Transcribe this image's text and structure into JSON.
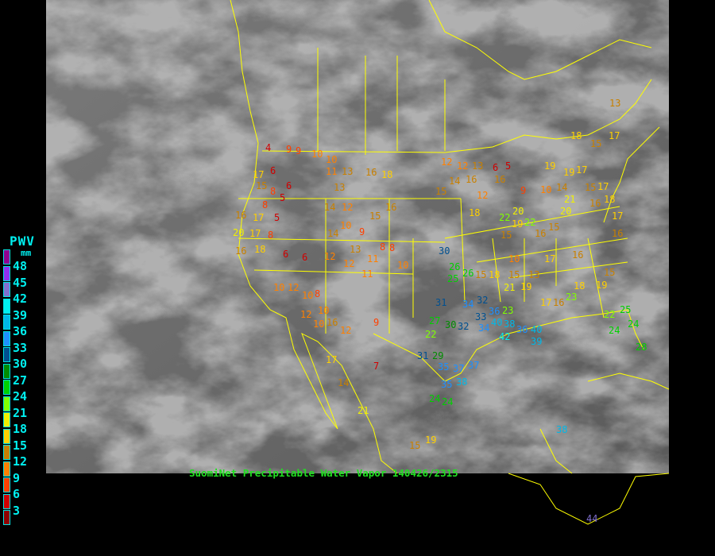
{
  "caption": "SuomiNet Precipitable Water Vapor 140426/2315",
  "legend": {
    "title": "PWV",
    "unit": "mm",
    "ticks": [
      "48",
      "45",
      "42",
      "39",
      "36",
      "33",
      "30",
      "27",
      "24",
      "21",
      "18",
      "15",
      "12",
      "9",
      "6",
      "3"
    ],
    "colors": [
      "#900090",
      "#9030f0",
      "#8070d0",
      "#00f0f0",
      "#00b8e8",
      "#1e90ff",
      "#005090",
      "#008c00",
      "#00d000",
      "#80ff00",
      "#f0f000",
      "#ffd000",
      "#c88000",
      "#ff8000",
      "#ff4000",
      "#d00000",
      "#900000"
    ]
  },
  "map_colors": {
    "borders": "#ffff00",
    "background": "#000000"
  },
  "stations": [
    {
      "v": "4",
      "c": "#d00000"
    },
    {
      "v": "9",
      "c": "#ff4000"
    },
    {
      "v": "9",
      "c": "#ff4000"
    },
    {
      "v": "10",
      "c": "#ff8000"
    },
    {
      "v": "17",
      "c": "#ffd000"
    },
    {
      "v": "6",
      "c": "#d00000"
    },
    {
      "v": "15",
      "c": "#c88000"
    },
    {
      "v": "8",
      "c": "#ff4000"
    },
    {
      "v": "6",
      "c": "#d00000"
    },
    {
      "v": "5",
      "c": "#d00000"
    },
    {
      "v": "16",
      "c": "#c88000"
    },
    {
      "v": "17",
      "c": "#ffd000"
    },
    {
      "v": "5",
      "c": "#d00000"
    },
    {
      "v": "8",
      "c": "#ff4000"
    },
    {
      "v": "20",
      "c": "#f0f000"
    },
    {
      "v": "17",
      "c": "#ffd000"
    },
    {
      "v": "8",
      "c": "#ff4000"
    },
    {
      "v": "16",
      "c": "#c88000"
    },
    {
      "v": "18",
      "c": "#ffd000"
    },
    {
      "v": "6",
      "c": "#d00000"
    },
    {
      "v": "10",
      "c": "#ff8000"
    },
    {
      "v": "11",
      "c": "#ff8000"
    },
    {
      "v": "13",
      "c": "#c88000"
    },
    {
      "v": "16",
      "c": "#c88000"
    },
    {
      "v": "18",
      "c": "#ffd000"
    },
    {
      "v": "13",
      "c": "#c88000"
    },
    {
      "v": "14",
      "c": "#c88000"
    },
    {
      "v": "12",
      "c": "#ff8000"
    },
    {
      "v": "15",
      "c": "#c88000"
    },
    {
      "v": "16",
      "c": "#c88000"
    },
    {
      "v": "10",
      "c": "#ff8000"
    },
    {
      "v": "14",
      "c": "#c88000"
    },
    {
      "v": "9",
      "c": "#ff4000"
    },
    {
      "v": "13",
      "c": "#c88000"
    },
    {
      "v": "8",
      "c": "#ff4000"
    },
    {
      "v": "12",
      "c": "#ff8000"
    },
    {
      "v": "12",
      "c": "#ff8000"
    },
    {
      "v": "11",
      "c": "#ff8000"
    },
    {
      "v": "8",
      "c": "#ff4000"
    },
    {
      "v": "10",
      "c": "#ff8000"
    },
    {
      "v": "10",
      "c": "#ff8000"
    },
    {
      "v": "12",
      "c": "#ff8000"
    },
    {
      "v": "10",
      "c": "#ff8000"
    },
    {
      "v": "8",
      "c": "#ff4000"
    },
    {
      "v": "10",
      "c": "#ff8000"
    },
    {
      "v": "12",
      "c": "#ff8000"
    },
    {
      "v": "10",
      "c": "#ff8000"
    },
    {
      "v": "16",
      "c": "#c88000"
    },
    {
      "v": "12",
      "c": "#ff8000"
    },
    {
      "v": "6",
      "c": "#d00000"
    },
    {
      "v": "9",
      "c": "#ff4000"
    },
    {
      "v": "11",
      "c": "#ff8000"
    },
    {
      "v": "7",
      "c": "#d00000"
    },
    {
      "v": "17",
      "c": "#ffd000"
    },
    {
      "v": "14",
      "c": "#c88000"
    },
    {
      "v": "21",
      "c": "#f0f000"
    },
    {
      "v": "15",
      "c": "#c88000"
    },
    {
      "v": "19",
      "c": "#ffd000"
    },
    {
      "v": "24",
      "c": "#00d000"
    },
    {
      "v": "30",
      "c": "#005090"
    },
    {
      "v": "25",
      "c": "#00d000"
    },
    {
      "v": "26",
      "c": "#00d000"
    },
    {
      "v": "31",
      "c": "#005090"
    },
    {
      "v": "32",
      "c": "#005090"
    },
    {
      "v": "34",
      "c": "#1e90ff"
    },
    {
      "v": "27",
      "c": "#00d000"
    },
    {
      "v": "22",
      "c": "#80ff00"
    },
    {
      "v": "30",
      "c": "#008c00"
    },
    {
      "v": "32",
      "c": "#005090"
    },
    {
      "v": "33",
      "c": "#005090"
    },
    {
      "v": "36",
      "c": "#1e90ff"
    },
    {
      "v": "40",
      "c": "#00b8e8"
    },
    {
      "v": "34",
      "c": "#1e90ff"
    },
    {
      "v": "38",
      "c": "#00b8e8"
    },
    {
      "v": "42",
      "c": "#00f0f0"
    },
    {
      "v": "36",
      "c": "#1e90ff"
    },
    {
      "v": "40",
      "c": "#00b8e8"
    },
    {
      "v": "39",
      "c": "#00b8e8"
    },
    {
      "v": "31",
      "c": "#005090"
    },
    {
      "v": "29",
      "c": "#008c00"
    },
    {
      "v": "35",
      "c": "#1e90ff"
    },
    {
      "v": "35",
      "c": "#1e90ff"
    },
    {
      "v": "37",
      "c": "#1e90ff"
    },
    {
      "v": "38",
      "c": "#00b8e8"
    },
    {
      "v": "24",
      "c": "#00d000"
    },
    {
      "v": "37",
      "c": "#1e90ff"
    },
    {
      "v": "23",
      "c": "#80ff00"
    },
    {
      "v": "16",
      "c": "#c88000"
    },
    {
      "v": "19",
      "c": "#ffd000"
    },
    {
      "v": "17",
      "c": "#ffd000"
    },
    {
      "v": "13",
      "c": "#c88000"
    },
    {
      "v": "18",
      "c": "#ffd000"
    },
    {
      "v": "15",
      "c": "#c88000"
    },
    {
      "v": "17",
      "c": "#ffd000"
    },
    {
      "v": "15",
      "c": "#c88000"
    },
    {
      "v": "18",
      "c": "#ffd000"
    },
    {
      "v": "15",
      "c": "#c88000"
    },
    {
      "v": "21",
      "c": "#f0f000"
    },
    {
      "v": "17",
      "c": "#ffd000"
    },
    {
      "v": "19",
      "c": "#ffd000"
    },
    {
      "v": "16",
      "c": "#c88000"
    },
    {
      "v": "23",
      "c": "#80ff00"
    },
    {
      "v": "18",
      "c": "#ffd000"
    },
    {
      "v": "19",
      "c": "#ffd000"
    },
    {
      "v": "15",
      "c": "#c88000"
    },
    {
      "v": "22",
      "c": "#80ff00"
    },
    {
      "v": "24",
      "c": "#00d000"
    },
    {
      "v": "25",
      "c": "#00d000"
    },
    {
      "v": "24",
      "c": "#00d000"
    },
    {
      "v": "28",
      "c": "#00d000"
    },
    {
      "v": "18",
      "c": "#ffd000"
    },
    {
      "v": "20",
      "c": "#f0f000"
    },
    {
      "v": "22",
      "c": "#80ff00"
    },
    {
      "v": "19",
      "c": "#ffd000"
    },
    {
      "v": "16",
      "c": "#c88000"
    },
    {
      "v": "15",
      "c": "#c88000"
    },
    {
      "v": "20",
      "c": "#f0f000"
    },
    {
      "v": "21",
      "c": "#f0f000"
    },
    {
      "v": "15",
      "c": "#c88000"
    },
    {
      "v": "16",
      "c": "#c88000"
    },
    {
      "v": "12",
      "c": "#ff8000"
    },
    {
      "v": "12",
      "c": "#ff8000"
    },
    {
      "v": "13",
      "c": "#c88000"
    },
    {
      "v": "6",
      "c": "#d00000"
    },
    {
      "v": "5",
      "c": "#d00000"
    },
    {
      "v": "9",
      "c": "#ff4000"
    },
    {
      "v": "12",
      "c": "#ff8000"
    },
    {
      "v": "10",
      "c": "#ff8000"
    },
    {
      "v": "14",
      "c": "#c88000"
    },
    {
      "v": "19",
      "c": "#ffd000"
    },
    {
      "v": "15",
      "c": "#c88000"
    },
    {
      "v": "14",
      "c": "#c88000"
    },
    {
      "v": "16",
      "c": "#c88000"
    },
    {
      "v": "18",
      "c": "#ffd000"
    },
    {
      "v": "17",
      "c": "#ffd000"
    },
    {
      "v": "16",
      "c": "#c88000"
    },
    {
      "v": "10",
      "c": "#ff8000"
    },
    {
      "v": "13",
      "c": "#c88000"
    },
    {
      "v": "17",
      "c": "#ffd000"
    },
    {
      "v": "16",
      "c": "#c88000"
    },
    {
      "v": "15",
      "c": "#c88000"
    },
    {
      "v": "22",
      "c": "#80ff00"
    },
    {
      "v": "17",
      "c": "#ffd000"
    },
    {
      "v": "38",
      "c": "#00b8e8"
    },
    {
      "v": "44",
      "c": "#8070d0"
    },
    {
      "v": "26",
      "c": "#00d000"
    }
  ]
}
